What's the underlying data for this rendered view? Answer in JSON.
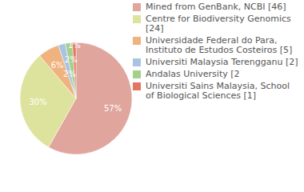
{
  "chart_data": {
    "type": "pie",
    "categories": [
      "Mined from GenBank, NCBI [46]",
      "Centre for Biodiversity Genomics [24]",
      "Universidade Federal do Para, Instituto de Estudos Costeiros [5]",
      "Universiti Malaysia Terengganu [2]",
      "Andalas University [2",
      "Universiti Sains Malaysia, School of Biological Sciences [1]"
    ],
    "values": [
      57,
      30,
      6,
      2,
      2,
      1
    ],
    "value_labels": [
      "57%",
      "30%",
      "6%",
      "2%",
      "2%",
      "1%"
    ],
    "colors": [
      "#e0a69e",
      "#dde39d",
      "#f0b27e",
      "#a9c4e0",
      "#a5d08c",
      "#e3765e"
    ],
    "data_labels": true,
    "legend": "right"
  }
}
